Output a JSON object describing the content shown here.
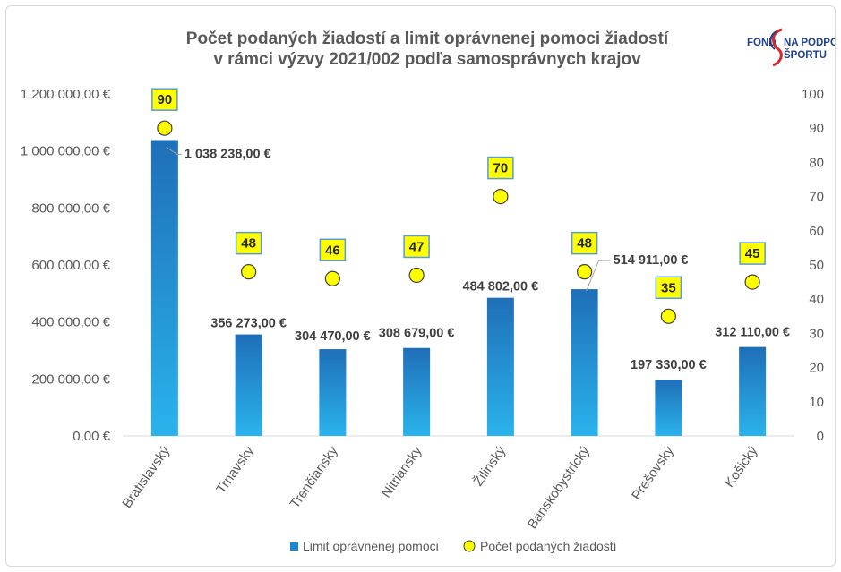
{
  "chart_data": {
    "type": "bar",
    "title": [
      "Počet podaných žiadostí a limit oprávnenej pomoci žiadostí",
      "v rámci výzvy 2021/002 podľa samosprávnych krajov"
    ],
    "categories": [
      "Bratislavský",
      "Trnavský",
      "Trenčiansky",
      "Nitriansky",
      "Žilinský",
      "Banskobystrický",
      "Prešovský",
      "Košický"
    ],
    "series": [
      {
        "name": "Limit oprávnenej pomoci",
        "axis": "left",
        "values": [
          1038238,
          356273,
          304470,
          308679,
          484802,
          514911,
          197330,
          312110
        ],
        "labels": [
          "1 038 238,00 €",
          "356 273,00 €",
          "304 470,00 €",
          "308 679,00 €",
          "484 802,00 €",
          "514 911,00 €",
          "197 330,00 €",
          "312 110,00 €"
        ]
      },
      {
        "name": "Počet podaných žiadostí",
        "axis": "right",
        "chart_type": "scatter",
        "values": [
          90,
          48,
          46,
          47,
          70,
          48,
          35,
          45
        ]
      }
    ],
    "y_left": {
      "ylim": [
        0,
        1200000
      ],
      "ticks": [
        0,
        200000,
        400000,
        600000,
        800000,
        1000000,
        1200000
      ],
      "tick_labels": [
        "0,00 €",
        "200 000,00 €",
        "400 000,00 €",
        "600 000,00 €",
        "800 000,00 €",
        "1 000 000,00 €",
        "1 200 000,00 €"
      ]
    },
    "y_right": {
      "ylim": [
        0,
        100
      ],
      "ticks": [
        0,
        10,
        20,
        30,
        40,
        50,
        60,
        70,
        80,
        90,
        100
      ],
      "tick_labels": [
        "0",
        "10",
        "20",
        "30",
        "40",
        "50",
        "60",
        "70",
        "80",
        "90",
        "100"
      ]
    },
    "grid": false,
    "legend_position": "bottom",
    "colors": {
      "bar_top": "#1f6fb8",
      "bar_bottom": "#2ab3ec",
      "marker_fill": "#ffff00",
      "marker_stroke": "#404040",
      "label_box_fill": "#ffff00",
      "label_box_stroke": "#5b9bd5"
    }
  },
  "logo": {
    "line1": "FOND",
    "line1b": "NA PODPORU",
    "line2": "ŠPORTU",
    "colors": {
      "text": "#1f3f8f",
      "accent": "#d6262e"
    }
  }
}
